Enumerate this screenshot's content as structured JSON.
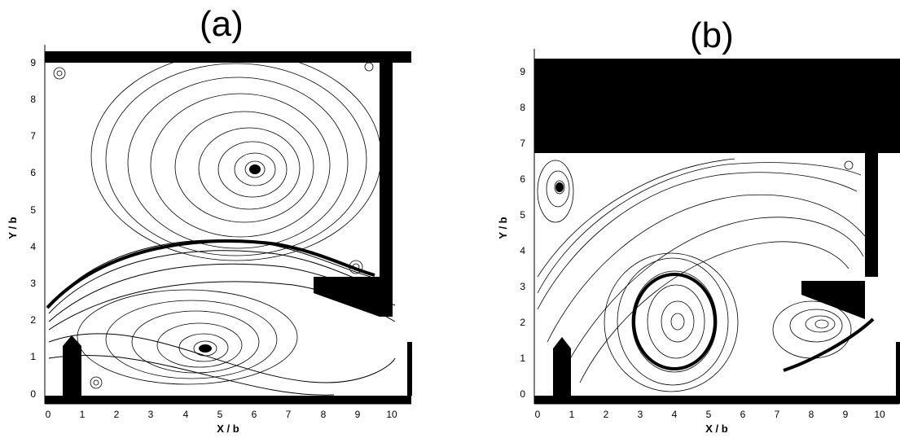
{
  "panels": [
    {
      "label": "(a)",
      "xlabel": "X / b",
      "ylabel": "Y / b",
      "x_ticks": [
        "0",
        "1",
        "2",
        "3",
        "4",
        "5",
        "6",
        "7",
        "8",
        "9",
        "10"
      ],
      "y_ticks": [
        "0",
        "1",
        "2",
        "3",
        "4",
        "5",
        "6",
        "7",
        "8",
        "9"
      ]
    },
    {
      "label": "(b)",
      "xlabel": "X / b",
      "ylabel": "Y / b",
      "x_ticks": [
        "0",
        "1",
        "2",
        "3",
        "4",
        "5",
        "6",
        "7",
        "8",
        "9",
        "10"
      ],
      "y_ticks": [
        "0",
        "1",
        "2",
        "3",
        "4",
        "5",
        "6",
        "7",
        "8",
        "9"
      ]
    }
  ],
  "colors": {
    "ink": "#000000",
    "background": "#ffffff"
  }
}
